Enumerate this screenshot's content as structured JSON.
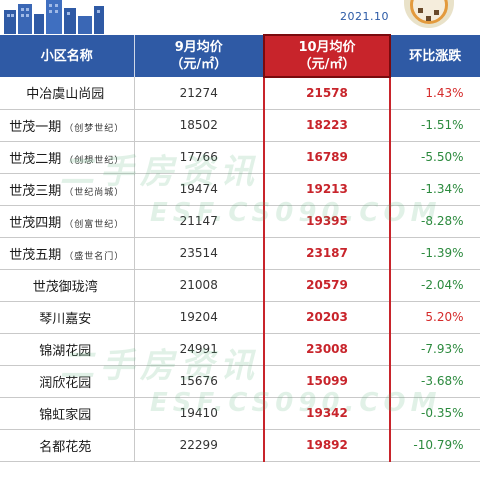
{
  "header": {
    "date": "2021.10",
    "brand_color": "#2f5aa5",
    "highlight_color": "#c8242b"
  },
  "table": {
    "columns": [
      {
        "line1": "小区名称",
        "line2": ""
      },
      {
        "line1": "9月均价",
        "line2": "（元/㎡）"
      },
      {
        "line1": "10月均价",
        "line2": "（元/㎡）"
      },
      {
        "line1": "环比涨跌",
        "line2": ""
      }
    ],
    "rows": [
      {
        "name": "中冶虞山尚园",
        "sub": "",
        "sep": "21274",
        "oct": "21578",
        "change": "1.43%",
        "dir": "up"
      },
      {
        "name": "世茂一期",
        "sub": "（创梦世纪）",
        "sep": "18502",
        "oct": "18223",
        "change": "-1.51%",
        "dir": "down"
      },
      {
        "name": "世茂二期",
        "sub": "（创想世纪）",
        "sep": "17766",
        "oct": "16789",
        "change": "-5.50%",
        "dir": "down"
      },
      {
        "name": "世茂三期",
        "sub": "（世纪尚城）",
        "sep": "19474",
        "oct": "19213",
        "change": "-1.34%",
        "dir": "down"
      },
      {
        "name": "世茂四期",
        "sub": "（创富世纪）",
        "sep": "21147",
        "oct": "19395",
        "change": "-8.28%",
        "dir": "down"
      },
      {
        "name": "世茂五期",
        "sub": "（盛世名门）",
        "sep": "23514",
        "oct": "23187",
        "change": "-1.39%",
        "dir": "down"
      },
      {
        "name": "世茂御珑湾",
        "sub": "",
        "sep": "21008",
        "oct": "20579",
        "change": "-2.04%",
        "dir": "down"
      },
      {
        "name": "琴川嘉安",
        "sub": "",
        "sep": "19204",
        "oct": "20203",
        "change": "5.20%",
        "dir": "up"
      },
      {
        "name": "锦湖花园",
        "sub": "",
        "sep": "24991",
        "oct": "23008",
        "change": "-7.93%",
        "dir": "down"
      },
      {
        "name": "润欣花园",
        "sub": "",
        "sep": "15676",
        "oct": "15099",
        "change": "-3.68%",
        "dir": "down"
      },
      {
        "name": "锦虹家园",
        "sub": "",
        "sep": "19410",
        "oct": "19342",
        "change": "-0.35%",
        "dir": "down"
      },
      {
        "name": "名都花苑",
        "sub": "",
        "sep": "22299",
        "oct": "19892",
        "change": "-10.79%",
        "dir": "down"
      }
    ]
  },
  "watermark": {
    "line1": "二手房资讯",
    "line2": "ESF.CS090.COM"
  }
}
